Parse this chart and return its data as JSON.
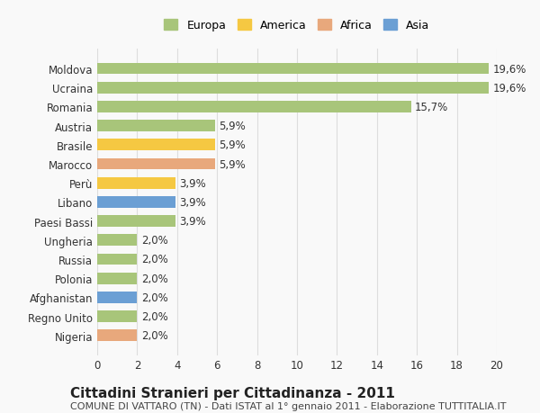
{
  "countries": [
    "Moldova",
    "Ucraina",
    "Romania",
    "Austria",
    "Brasile",
    "Marocco",
    "Perù",
    "Libano",
    "Paesi Bassi",
    "Ungheria",
    "Russia",
    "Polonia",
    "Afghanistan",
    "Regno Unito",
    "Nigeria"
  ],
  "values": [
    19.6,
    19.6,
    15.7,
    5.9,
    5.9,
    5.9,
    3.9,
    3.9,
    3.9,
    2.0,
    2.0,
    2.0,
    2.0,
    2.0,
    2.0
  ],
  "labels": [
    "19,6%",
    "19,6%",
    "15,7%",
    "5,9%",
    "5,9%",
    "5,9%",
    "3,9%",
    "3,9%",
    "3,9%",
    "2,0%",
    "2,0%",
    "2,0%",
    "2,0%",
    "2,0%",
    "2,0%"
  ],
  "continents": [
    "Europa",
    "Europa",
    "Europa",
    "Europa",
    "America",
    "Africa",
    "America",
    "Asia",
    "Europa",
    "Europa",
    "Europa",
    "Europa",
    "Asia",
    "Europa",
    "Africa"
  ],
  "colors": {
    "Europa": "#a8c57a",
    "America": "#f5c842",
    "Africa": "#e8a87c",
    "Asia": "#6b9fd4"
  },
  "legend_colors": {
    "Europa": "#a8c57a",
    "America": "#f5c842",
    "Africa": "#e8a87c",
    "Asia": "#6b9fd4"
  },
  "xlim": [
    0,
    20
  ],
  "xticks": [
    0,
    2,
    4,
    6,
    8,
    10,
    12,
    14,
    16,
    18,
    20
  ],
  "title": "Cittadini Stranieri per Cittadinanza - 2011",
  "subtitle": "COMUNE DI VATTARO (TN) - Dati ISTAT al 1° gennaio 2011 - Elaborazione TUTTITALIA.IT",
  "bg_color": "#f9f9f9",
  "grid_color": "#dddddd",
  "bar_height": 0.6,
  "label_fontsize": 8.5,
  "tick_fontsize": 8.5,
  "title_fontsize": 11,
  "subtitle_fontsize": 8
}
